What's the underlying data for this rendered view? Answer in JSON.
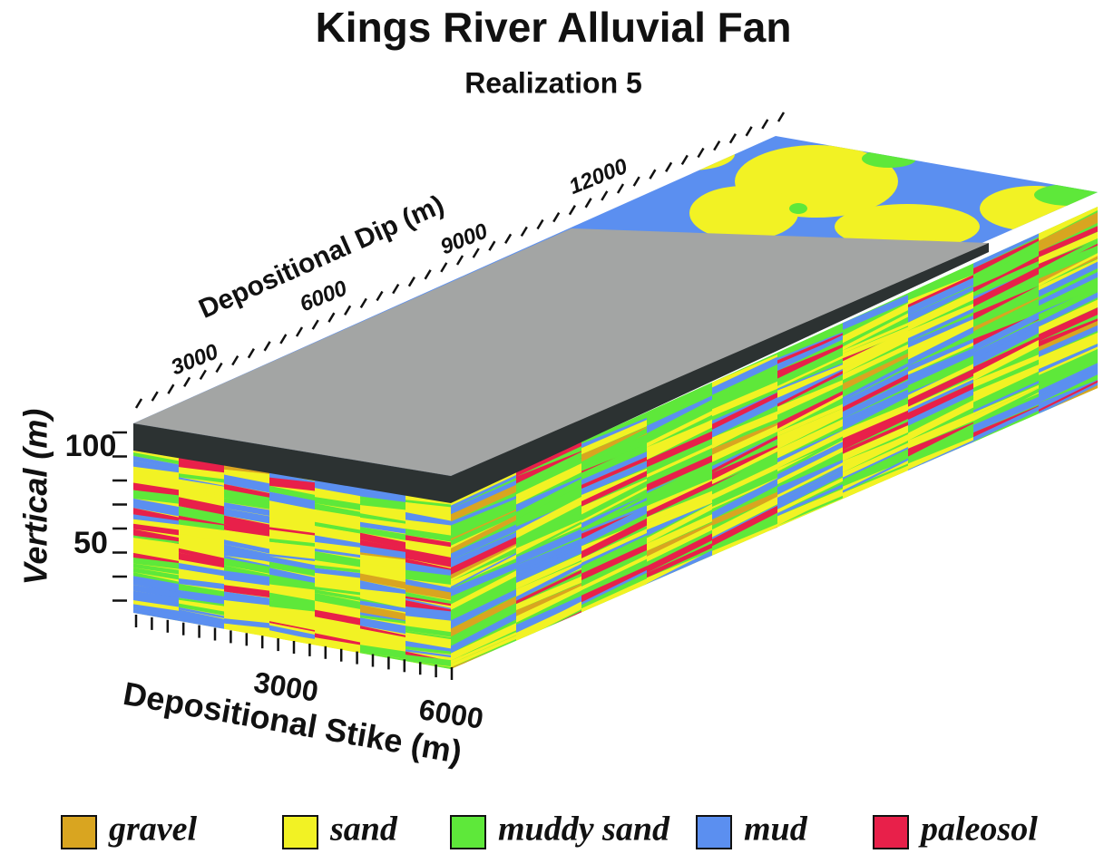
{
  "title": "Kings River Alluvial Fan",
  "subtitle": "Realization 5",
  "axes": {
    "vertical": {
      "label": "Vertical (m)",
      "ticks": [
        50,
        100
      ]
    },
    "strike": {
      "label": "Depositional Stike (m)",
      "ticks": [
        3000,
        6000
      ]
    },
    "dip": {
      "label": "Depositional Dip (m)",
      "ticks": [
        3000,
        6000,
        9000,
        12000
      ]
    }
  },
  "legend": [
    {
      "label": "gravel",
      "color": "#d9a520"
    },
    {
      "label": "sand",
      "color": "#f2f224"
    },
    {
      "label": "muddy sand",
      "color": "#5ee83a"
    },
    {
      "label": "mud",
      "color": "#5b8ff0"
    },
    {
      "label": "paleosol",
      "color": "#e8204a"
    }
  ]
}
